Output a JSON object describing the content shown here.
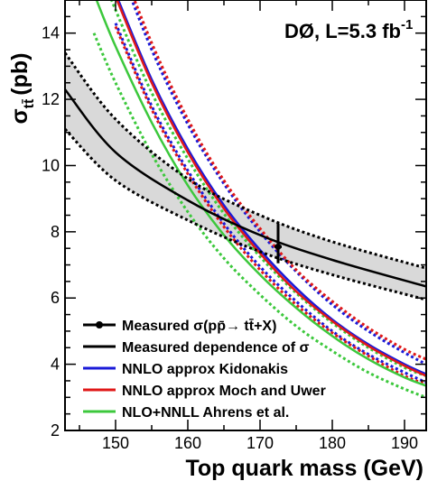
{
  "chart_data": {
    "type": "line",
    "annotation": {
      "experiment": "DØ, L=5.3 fb",
      "exponent": "-1"
    },
    "xlabel": "Top quark mass (GeV)",
    "ylabel": {
      "main": "σ",
      "sub": "tt̄",
      "unit": "(pb)"
    },
    "xlim": [
      143,
      193
    ],
    "ylim": [
      2,
      15
    ],
    "x_ticks": [
      150,
      160,
      170,
      180,
      190
    ],
    "y_ticks": [
      2,
      4,
      6,
      8,
      10,
      12,
      14
    ],
    "grid": false,
    "legend_placement": "bottom-right",
    "colors": {
      "measured": "#000000",
      "kidonakis": "#1a1ad8",
      "moch": "#e01818",
      "ahrens": "#3cc83c",
      "band": "#d9d9d9"
    },
    "series": [
      {
        "name": "Measured dependence of σ",
        "role": "band",
        "x": [
          143,
          150,
          160,
          170,
          180,
          193
        ],
        "values": [
          12.3,
          10.4,
          8.95,
          7.9,
          7.15,
          6.35
        ],
        "upper": [
          13.4,
          11.4,
          9.6,
          8.5,
          7.7,
          6.9
        ],
        "lower": [
          11.1,
          9.55,
          8.35,
          7.4,
          6.7,
          5.95
        ]
      },
      {
        "name": "NNLO approx Kidonakis",
        "role": "theory",
        "x": [
          150,
          155,
          160,
          165,
          170,
          175,
          180,
          185,
          190,
          193
        ],
        "values": [
          15.2,
          12.6,
          10.5,
          8.8,
          7.45,
          6.3,
          5.35,
          4.6,
          4.0,
          3.7
        ],
        "upper": [
          16.3,
          13.5,
          11.25,
          9.45,
          8.0,
          6.8,
          5.8,
          5.0,
          4.35,
          4.0
        ],
        "lower": [
          14.3,
          11.8,
          9.85,
          8.25,
          6.95,
          5.9,
          5.0,
          4.3,
          3.75,
          3.45
        ]
      },
      {
        "name": "NNLO approx Moch and Uwer",
        "role": "theory",
        "x": [
          150,
          155,
          160,
          165,
          170,
          175,
          180,
          185,
          190,
          193
        ],
        "values": [
          15.1,
          12.5,
          10.4,
          8.7,
          7.35,
          6.2,
          5.3,
          4.55,
          3.95,
          3.65
        ],
        "upper": [
          16.5,
          13.7,
          11.4,
          9.55,
          8.1,
          6.85,
          5.9,
          5.1,
          4.45,
          4.15
        ],
        "lower": [
          14.2,
          11.7,
          9.75,
          8.15,
          6.85,
          5.8,
          4.95,
          4.25,
          3.65,
          3.4
        ]
      },
      {
        "name": "NLO+NNLL Ahrens et al.",
        "role": "theory",
        "x": [
          147,
          150,
          155,
          160,
          165,
          170,
          175,
          180,
          185,
          190,
          193
        ],
        "values": [
          15.2,
          13.6,
          11.3,
          9.4,
          7.9,
          6.7,
          5.7,
          4.85,
          4.15,
          3.6,
          3.35
        ],
        "upper": [
          16.4,
          14.7,
          12.2,
          10.2,
          8.55,
          7.25,
          6.15,
          5.25,
          4.5,
          3.9,
          3.65
        ],
        "lower": [
          14.0,
          12.5,
          10.35,
          8.6,
          7.2,
          6.1,
          5.15,
          4.4,
          3.75,
          3.25,
          3.0
        ]
      }
    ],
    "measured_point": {
      "name": "Measured σ(pp̄→ tt̄+X)",
      "x": 172.5,
      "y": 7.55,
      "y_err": [
        7.05,
        8.25
      ],
      "x_err": [
        172.0,
        173.0
      ]
    },
    "legend": [
      {
        "label": "Measured σ(pp̄→ tt̄+X)",
        "color_key": "measured",
        "marker": true
      },
      {
        "label": "Measured dependence of σ",
        "color_key": "measured",
        "marker": false
      },
      {
        "label": "NNLO approx Kidonakis",
        "color_key": "kidonakis",
        "marker": false
      },
      {
        "label": "NNLO approx Moch and Uwer",
        "color_key": "moch",
        "marker": false
      },
      {
        "label": "NLO+NNLL Ahrens et al.",
        "color_key": "ahrens",
        "marker": false
      }
    ]
  }
}
